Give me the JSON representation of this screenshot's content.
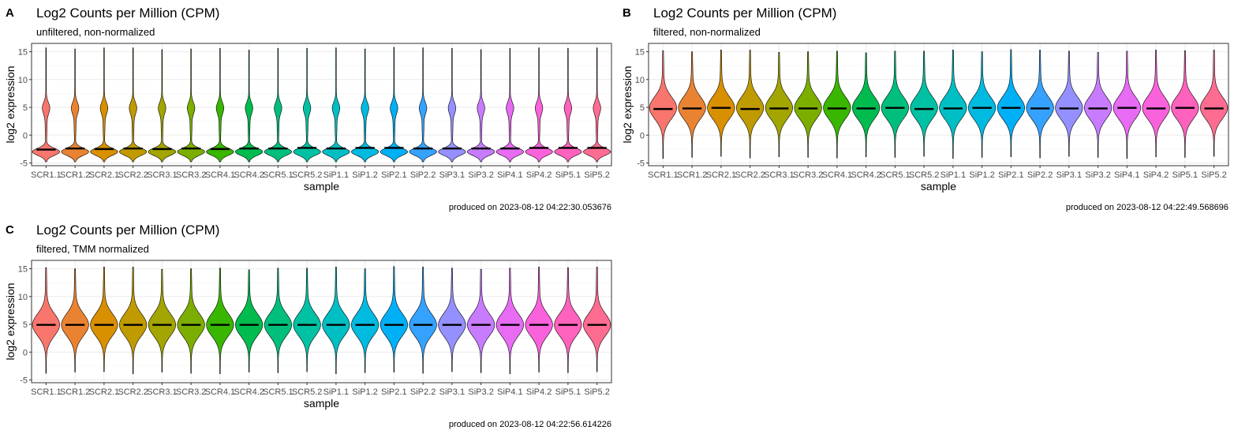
{
  "chart_data": [
    {
      "panel_label": "A",
      "type": "violin",
      "title": "Log2 Counts per Million (CPM)",
      "subtitle": "unfiltered, non-normalized",
      "xlabel": "sample",
      "ylabel": "log2 expression",
      "caption": "produced on 2023-08-12 04:22:30.053676",
      "ylim": [
        -5.5,
        16.5
      ],
      "yticks": [
        -5,
        0,
        5,
        10,
        15
      ],
      "grid": true,
      "distribution": "bimodal",
      "categories": [
        "SCR1.1",
        "SCR1.2",
        "SCR2.1",
        "SCR2.2",
        "SCR3.1",
        "SCR3.2",
        "SCR4.1",
        "SCR4.2",
        "SCR5.1",
        "SCR5.2",
        "SiP1.1",
        "SiP1.2",
        "SiP2.1",
        "SiP2.2",
        "SiP3.1",
        "SiP3.2",
        "SiP4.1",
        "SiP4.2",
        "SiP5.1",
        "SiP5.2"
      ],
      "medians": [
        -2.6,
        -2.4,
        -2.5,
        -2.4,
        -2.5,
        -2.4,
        -2.5,
        -2.4,
        -2.4,
        -2.3,
        -2.4,
        -2.3,
        -2.3,
        -2.4,
        -2.4,
        -2.4,
        -2.4,
        -2.3,
        -2.3,
        -2.3
      ],
      "min": -4.8,
      "max": [
        15.7,
        15.5,
        15.7,
        15.7,
        15.4,
        15.5,
        15.6,
        15.3,
        15.6,
        15.6,
        15.7,
        15.5,
        15.8,
        15.7,
        15.6,
        15.4,
        15.6,
        15.7,
        15.6,
        15.7
      ],
      "colors": [
        "#F8766D",
        "#EA8331",
        "#D89000",
        "#C09B00",
        "#A3A500",
        "#7CAE00",
        "#39B600",
        "#00BB4E",
        "#00BF7D",
        "#00C1A3",
        "#00BFC4",
        "#00BAE0",
        "#00B0F6",
        "#35A2FF",
        "#9590FF",
        "#C77CFF",
        "#E76BF3",
        "#FA62DB",
        "#FF62BC",
        "#FF6C91"
      ]
    },
    {
      "panel_label": "B",
      "type": "violin",
      "title": "Log2 Counts per Million (CPM)",
      "subtitle": "filtered, non-normalized",
      "xlabel": "sample",
      "ylabel": "log2 expression",
      "caption": "produced on 2023-08-12 04:22:49.568696",
      "ylim": [
        -5.5,
        16.5
      ],
      "yticks": [
        -5,
        0,
        5,
        10,
        15
      ],
      "grid": true,
      "distribution": "unimodal",
      "categories": [
        "SCR1.1",
        "SCR1.2",
        "SCR2.1",
        "SCR2.2",
        "SCR3.1",
        "SCR3.2",
        "SCR4.1",
        "SCR4.2",
        "SCR5.1",
        "SCR5.2",
        "SiP1.1",
        "SiP1.2",
        "SiP2.1",
        "SiP2.2",
        "SiP3.1",
        "SiP3.2",
        "SiP4.1",
        "SiP4.2",
        "SiP5.1",
        "SiP5.2"
      ],
      "medians": [
        4.7,
        4.8,
        4.9,
        4.7,
        4.8,
        4.8,
        4.8,
        4.8,
        4.9,
        4.7,
        4.8,
        4.9,
        4.9,
        4.8,
        4.8,
        4.8,
        4.9,
        4.8,
        4.9,
        4.8
      ],
      "min": [
        -4.2,
        -4.0,
        -3.8,
        -4.1,
        -3.9,
        -4.0,
        -4.1,
        -3.9,
        -4.0,
        -3.8,
        -4.2,
        -4.0,
        -3.9,
        -4.1,
        -3.8,
        -4.0,
        -4.2,
        -3.9,
        -4.0,
        -3.8
      ],
      "max": [
        15.2,
        15.0,
        15.3,
        15.3,
        14.9,
        15.0,
        15.1,
        14.8,
        15.1,
        15.1,
        15.3,
        15.0,
        15.4,
        15.3,
        15.1,
        14.9,
        15.1,
        15.3,
        15.2,
        15.3
      ],
      "colors": [
        "#F8766D",
        "#EA8331",
        "#D89000",
        "#C09B00",
        "#A3A500",
        "#7CAE00",
        "#39B600",
        "#00BB4E",
        "#00BF7D",
        "#00C1A3",
        "#00BFC4",
        "#00BAE0",
        "#00B0F6",
        "#35A2FF",
        "#9590FF",
        "#C77CFF",
        "#E76BF3",
        "#FA62DB",
        "#FF62BC",
        "#FF6C91"
      ]
    },
    {
      "panel_label": "C",
      "type": "violin",
      "title": "Log2 Counts per Million (CPM)",
      "subtitle": "filtered, TMM normalized",
      "xlabel": "sample",
      "ylabel": "log2 expression",
      "caption": "produced on 2023-08-12 04:22:56.614226",
      "ylim": [
        -5.5,
        16.5
      ],
      "yticks": [
        -5,
        0,
        5,
        10,
        15
      ],
      "grid": true,
      "distribution": "unimodal",
      "categories": [
        "SCR1.1",
        "SCR1.2",
        "SCR2.1",
        "SCR2.2",
        "SCR3.1",
        "SCR3.2",
        "SCR4.1",
        "SCR4.2",
        "SCR5.1",
        "SCR5.2",
        "SiP1.1",
        "SiP1.2",
        "SiP2.1",
        "SiP2.2",
        "SiP3.1",
        "SiP3.2",
        "SiP4.1",
        "SiP4.2",
        "SiP5.1",
        "SiP5.2"
      ],
      "medians": [
        4.9,
        4.9,
        4.9,
        4.9,
        4.9,
        4.9,
        4.9,
        4.9,
        4.9,
        4.9,
        4.9,
        4.9,
        4.9,
        4.9,
        4.9,
        4.9,
        4.9,
        4.9,
        4.9,
        4.9
      ],
      "min": [
        -3.8,
        -3.6,
        -3.5,
        -3.9,
        -3.6,
        -3.8,
        -3.9,
        -3.6,
        -3.7,
        -3.5,
        -3.9,
        -3.7,
        -3.6,
        -3.8,
        -3.5,
        -3.7,
        -3.9,
        -3.6,
        -3.7,
        -3.5
      ],
      "max": [
        15.2,
        15.0,
        15.3,
        15.3,
        14.9,
        15.0,
        15.1,
        14.8,
        15.1,
        15.1,
        15.3,
        15.0,
        15.4,
        15.3,
        15.1,
        14.9,
        15.1,
        15.3,
        15.2,
        15.3
      ],
      "colors": [
        "#F8766D",
        "#EA8331",
        "#D89000",
        "#C09B00",
        "#A3A500",
        "#7CAE00",
        "#39B600",
        "#00BB4E",
        "#00BF7D",
        "#00C1A3",
        "#00BFC4",
        "#00BAE0",
        "#00B0F6",
        "#35A2FF",
        "#9590FF",
        "#C77CFF",
        "#E76BF3",
        "#FA62DB",
        "#FF62BC",
        "#FF6C91"
      ]
    }
  ]
}
